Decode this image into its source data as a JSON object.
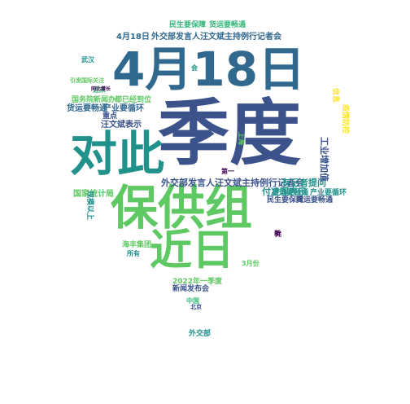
{
  "words": [
    {
      "id": "siyue18ri",
      "text": "4月18日",
      "color": "#31688e"
    },
    {
      "id": "jidu",
      "text": "季度",
      "color": "#3b528b"
    },
    {
      "id": "duici",
      "text": "对此",
      "color": "#21918c"
    },
    {
      "id": "baogongzu",
      "text": "保供组",
      "color": "#5ec962"
    },
    {
      "id": "jinri",
      "text": "近日",
      "color": "#5ec962"
    },
    {
      "id": "presser-mid",
      "text": "外交部发言人汪文斌主持例行记者会",
      "color": "#3b528b"
    },
    {
      "id": "presser-top",
      "text": "外交部发言人汪文斌主持例行记者会",
      "color": "#31688e"
    },
    {
      "id": "date-presser",
      "text": "4月18日",
      "color": "#31688e"
    },
    {
      "id": "reporter-question",
      "text": "有记者提问",
      "color": "#21918c"
    },
    {
      "id": "fuling",
      "text": "付凌晖表示",
      "color": "#21918c"
    },
    {
      "id": "minsheng-top",
      "text": "民生要保障",
      "color": "#35b779"
    },
    {
      "id": "huoyun-top",
      "text": "货运要畅通",
      "color": "#35b779"
    },
    {
      "id": "huoyun-left",
      "text": "货运要畅通",
      "color": "#31688e"
    },
    {
      "id": "chanye-left",
      "text": "产业要循环",
      "color": "#31688e"
    },
    {
      "id": "wang-left",
      "text": "汪文斌表示",
      "color": "#3b528b"
    },
    {
      "id": "jiwang",
      "text": "都已经到位",
      "color": "#5ec962"
    },
    {
      "id": "guoyuan",
      "text": "国务院新闻办",
      "color": "#5ec962"
    },
    {
      "id": "huoyun-right",
      "text": "货运要畅通",
      "color": "#21918c"
    },
    {
      "id": "chanye-right",
      "text": "产业要循环",
      "color": "#21918c"
    },
    {
      "id": "minsheng-right",
      "text": "民生要保障",
      "color": "#3b528b"
    },
    {
      "id": "huoyun-right2",
      "text": "货运要畅通",
      "color": "#3b528b"
    },
    {
      "id": "jinlai",
      "text": "近来",
      "color": "#35b779"
    },
    {
      "id": "yiyue",
      "text": "引发国际关注",
      "color": "#5ec962"
    },
    {
      "id": "wuhan",
      "text": "武汉",
      "color": "#21918c"
    },
    {
      "id": "guojia",
      "text": "国家统计局",
      "color": "#5ec962"
    },
    {
      "id": "haifeng",
      "text": "海丰集团",
      "color": "#5ec962"
    },
    {
      "id": "yijidu",
      "text": "2022年一季度",
      "color": "#5ec962"
    },
    {
      "id": "fabu",
      "text": "新闻发布会",
      "color": "#3b528b"
    },
    {
      "id": "suoyou",
      "text": "所有",
      "color": "#21918c"
    },
    {
      "id": "sanyue",
      "text": "3月份",
      "color": "#5ec962"
    },
    {
      "id": "beijing",
      "text": "北京",
      "color": "#3b528b"
    },
    {
      "id": "waijiaobu",
      "text": "外交部",
      "color": "#21918c"
    },
    {
      "id": "zhongguo",
      "text": "中国",
      "color": "#35b779"
    },
    {
      "id": "zhongdian",
      "text": "重点",
      "color": "#3b528b"
    },
    {
      "id": "kuai",
      "text": "会",
      "color": "#21918c"
    },
    {
      "id": "xindi",
      "text": "新",
      "color": "#440154"
    },
    {
      "id": "tongbi",
      "text": "同比增长",
      "color": "#440154"
    },
    {
      "id": "di1",
      "text": "第一",
      "color": "#440154"
    },
    {
      "id": "weiyi",
      "text": "完",
      "color": "#440154"
    },
    {
      "id": "guiding",
      "text": "规模以上",
      "color": "#21918c"
    },
    {
      "id": "qiye",
      "text": "工业增加值",
      "color": "#3b528b"
    },
    {
      "id": "shanghai",
      "text": "上海",
      "color": "#5ec962"
    },
    {
      "id": "xinxi",
      "text": "信息",
      "color": "#fde725"
    },
    {
      "id": "dangjiu",
      "text": "疫情防控",
      "color": "#fde725"
    }
  ]
}
